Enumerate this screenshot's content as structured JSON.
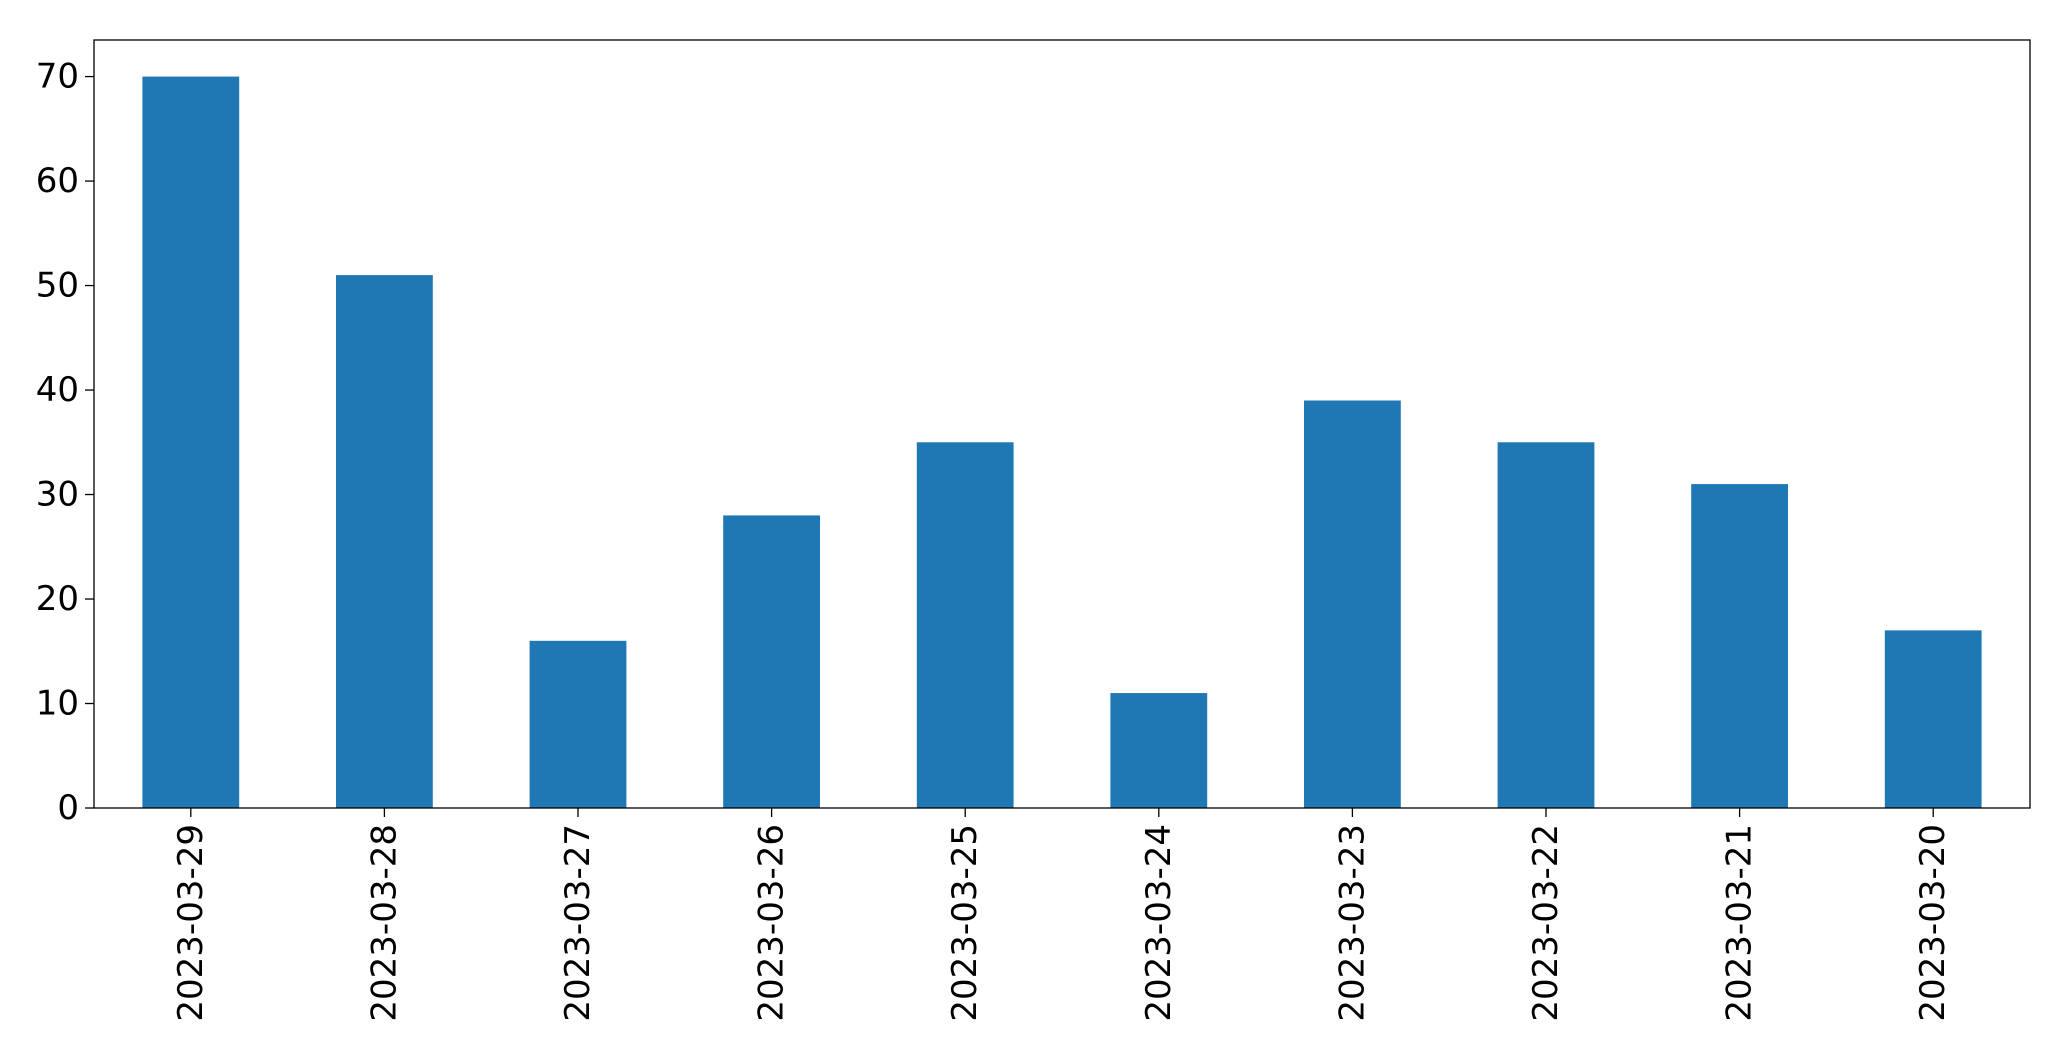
{
  "chart_data": {
    "type": "bar",
    "categories": [
      "2023-03-29",
      "2023-03-28",
      "2023-03-27",
      "2023-03-26",
      "2023-03-25",
      "2023-03-24",
      "2023-03-23",
      "2023-03-22",
      "2023-03-21",
      "2023-03-20"
    ],
    "values": [
      70,
      51,
      16,
      28,
      35,
      11,
      39,
      35,
      31,
      17
    ],
    "color": "#1f77b4",
    "ylim": [
      0,
      73.5
    ],
    "yticks": [
      0,
      10,
      20,
      30,
      40,
      50,
      60,
      70
    ],
    "grid": false
  }
}
